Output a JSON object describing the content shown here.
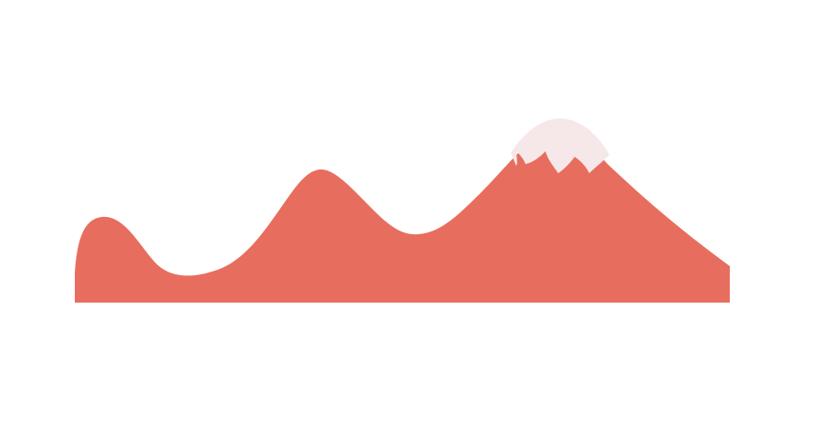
{
  "colors": {
    "background": "#ffffff",
    "mountain": "#e76e5e",
    "snow": "#f6e8e8"
  },
  "illustration": {
    "subject": "mountain-range-with-snowcap-icon"
  }
}
